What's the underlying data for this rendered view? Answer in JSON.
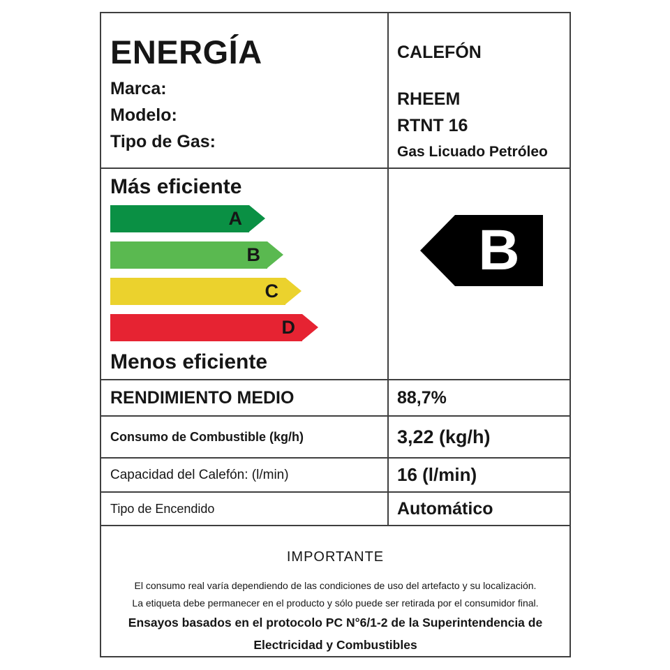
{
  "header": {
    "title": "ENERGÍA",
    "category": "CALEFÓN",
    "fields": [
      {
        "label": "Marca:",
        "value": "RHEEM"
      },
      {
        "label": "Modelo:",
        "value": "RTNT 16"
      },
      {
        "label": "Tipo de Gas:",
        "value": "Gas Licuado Petróleo"
      }
    ]
  },
  "efficiency_scale": {
    "more_efficient_label": "Más eficiente",
    "less_efficient_label": "Menos eficiente",
    "grades": [
      {
        "letter": "A",
        "color": "#0a9044"
      },
      {
        "letter": "B",
        "color": "#5ab950"
      },
      {
        "letter": "C",
        "color": "#ebd22d"
      },
      {
        "letter": "D",
        "color": "#e62332"
      }
    ],
    "rating": {
      "letter": "B",
      "color": "#000000",
      "text_color": "#ffffff"
    }
  },
  "specs": {
    "rows": [
      {
        "label": "RENDIMIENTO MEDIO",
        "value": "88,7%"
      },
      {
        "label": "Consumo de Combustible (kg/h)",
        "value": "3,22 (kg/h)"
      },
      {
        "label": "Capacidad del Calefón: (l/min)",
        "value": "16 (l/min)"
      },
      {
        "label": "Tipo de Encendido",
        "value": "Automático"
      }
    ]
  },
  "footer": {
    "title": "IMPORTANTE",
    "notes": [
      "El consumo real varía dependiendo de las condiciones de uso del artefacto y su localización.",
      "La etiqueta debe permanecer en el producto y sólo puede ser retirada por el consumidor final."
    ],
    "protocol_lines": [
      "Ensayos basados en el protocolo PC N°6/1-2 de la Superintendencia de",
      "Electricidad y Combustibles"
    ]
  }
}
